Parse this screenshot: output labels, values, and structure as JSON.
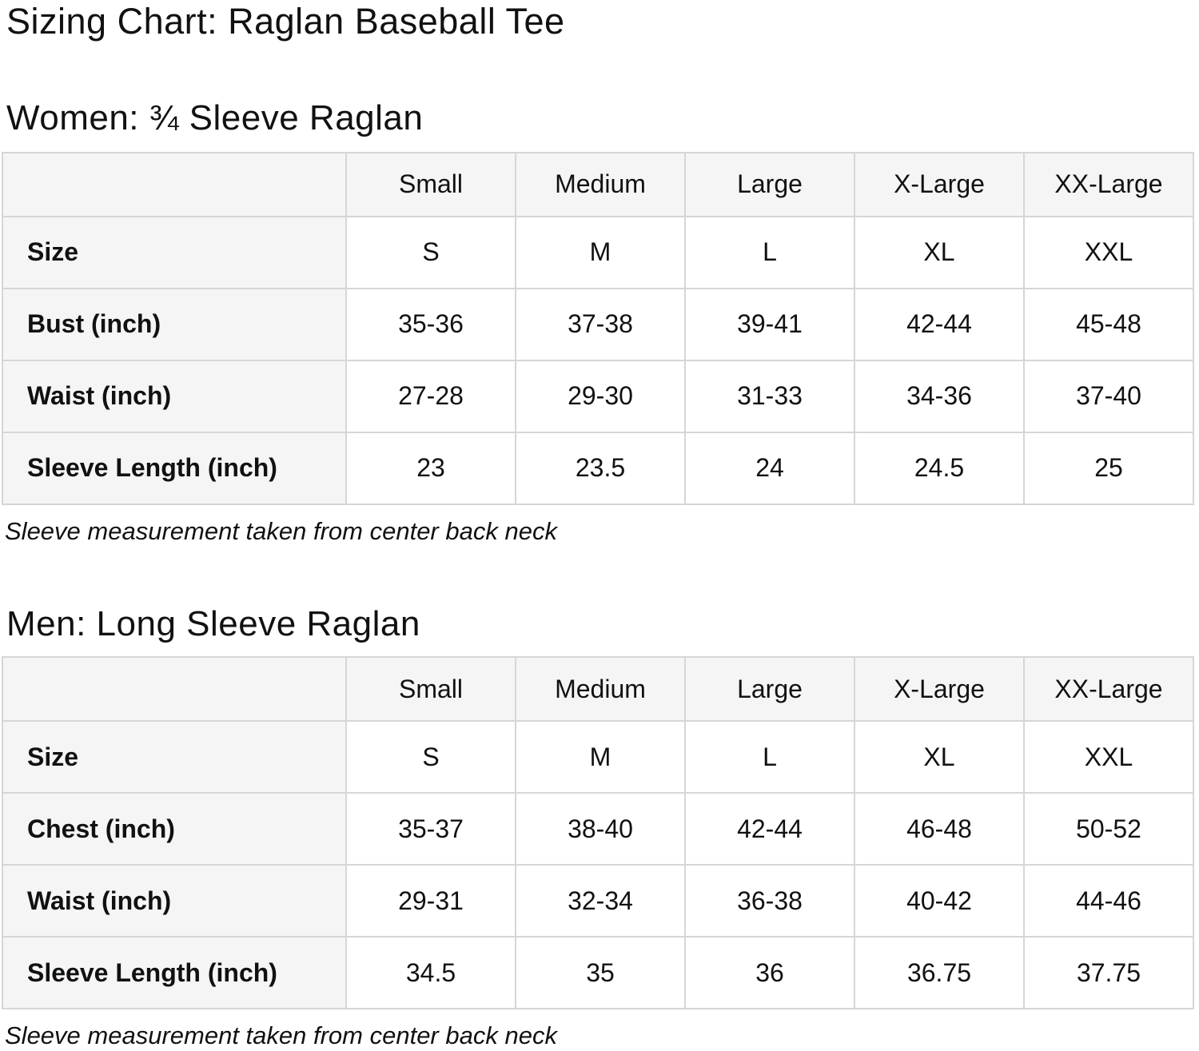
{
  "page": {
    "title": "Sizing Chart: Raglan Baseball Tee"
  },
  "colors": {
    "header_cell_bg": "#f5f5f5",
    "table_border": "#d6d6d6",
    "text": "#101112",
    "page_bg": "#ffffff"
  },
  "sections": [
    {
      "heading": "Women: ¾ Sleeve Raglan",
      "note": "Sleeve measurement taken from center back neck",
      "table": {
        "column_headers": [
          "Small",
          "Medium",
          "Large",
          "X-Large",
          "XX-Large"
        ],
        "rows": [
          {
            "label": "Size",
            "values": [
              "S",
              "M",
              "L",
              "XL",
              "XXL"
            ]
          },
          {
            "label": "Bust (inch)",
            "values": [
              "35-36",
              "37-38",
              "39-41",
              "42-44",
              "45-48"
            ]
          },
          {
            "label": "Waist (inch)",
            "values": [
              "27-28",
              "29-30",
              "31-33",
              "34-36",
              "37-40"
            ]
          },
          {
            "label": "Sleeve Length (inch)",
            "values": [
              "23",
              "23.5",
              "24",
              "24.5",
              "25"
            ]
          }
        ]
      }
    },
    {
      "heading": "Men: Long Sleeve Raglan",
      "note": "Sleeve measurement taken from center back neck",
      "table": {
        "column_headers": [
          "Small",
          "Medium",
          "Large",
          "X-Large",
          "XX-Large"
        ],
        "rows": [
          {
            "label": "Size",
            "values": [
              "S",
              "M",
              "L",
              "XL",
              "XXL"
            ]
          },
          {
            "label": "Chest (inch)",
            "values": [
              "35-37",
              "38-40",
              "42-44",
              "46-48",
              "50-52"
            ]
          },
          {
            "label": "Waist (inch)",
            "values": [
              "29-31",
              "32-34",
              "36-38",
              "40-42",
              "44-46"
            ]
          },
          {
            "label": "Sleeve Length (inch)",
            "values": [
              "34.5",
              "35",
              "36",
              "36.75",
              "37.75"
            ]
          }
        ]
      }
    }
  ]
}
